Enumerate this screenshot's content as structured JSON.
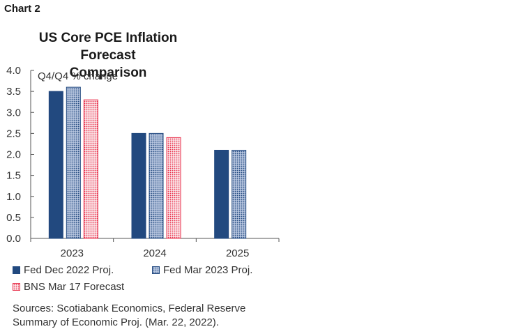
{
  "header": {
    "chart_label": "Chart 2"
  },
  "title_line1": "US Core PCE Inflation  Forecast",
  "title_line2": "Comparison",
  "chart_data": {
    "type": "bar",
    "title": "US Core PCE Inflation  Forecast Comparison",
    "unit_label": "Q4/Q4 % change",
    "categories": [
      "2023",
      "2024",
      "2025"
    ],
    "ylim": [
      0,
      4.0
    ],
    "yticks": [
      "0.0",
      "0.5",
      "1.0",
      "1.5",
      "2.0",
      "2.5",
      "3.0",
      "3.5",
      "4.0"
    ],
    "grid": false,
    "legend_position": "bottom",
    "series": [
      {
        "name": "Fed Dec 2022 Proj.",
        "values": [
          3.5,
          2.5,
          2.1
        ],
        "color": "#22497f",
        "pattern": "solid"
      },
      {
        "name": "Fed Mar 2023 Proj.",
        "values": [
          3.6,
          2.5,
          2.1
        ],
        "color": "#22497f",
        "pattern": "dots"
      },
      {
        "name": "BNS Mar 17 Forecast",
        "values": [
          3.3,
          2.4,
          null
        ],
        "color": "#e8304b",
        "pattern": "dots"
      }
    ]
  },
  "sources_line1": "Sources: Scotiabank Economics, Federal Reserve",
  "sources_line2": "Summary of Economic Proj. (Mar. 22, 2022)."
}
